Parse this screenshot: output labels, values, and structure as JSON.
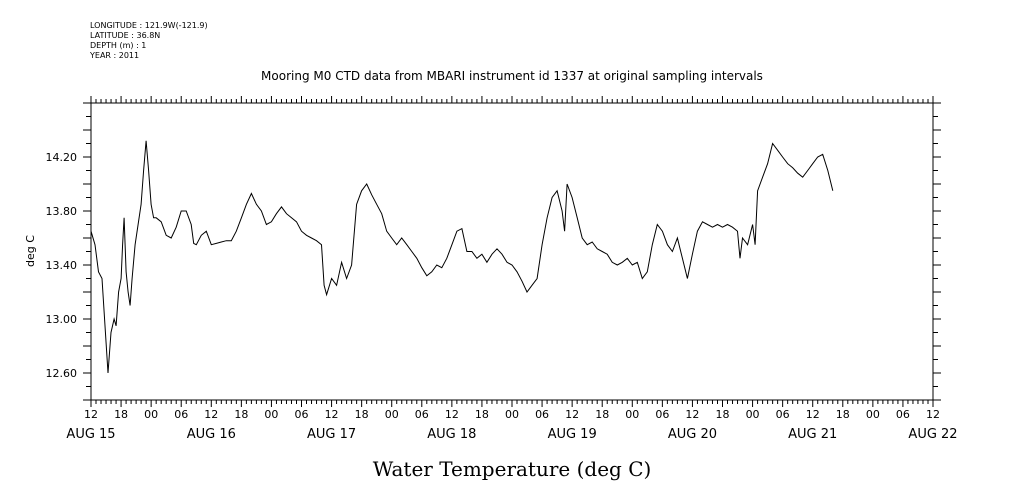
{
  "meta": {
    "longitude": "LONGITUDE : 121.9W(-121.9)",
    "latitude": "LATITUDE : 36.8N",
    "depth": "DEPTH (m) : 1",
    "year": "YEAR : 2011"
  },
  "chart_data": {
    "type": "line",
    "title": "Mooring M0 CTD data from MBARI instrument id 1337 at original sampling intervals",
    "ylabel": "deg C",
    "xlabel": "Water Temperature (deg C)",
    "ylim": [
      12.4,
      14.6
    ],
    "yticks": [
      "12.60",
      "13.00",
      "13.40",
      "13.80",
      "14.20"
    ],
    "ytick_values": [
      12.6,
      13.0,
      13.4,
      13.8,
      14.2
    ],
    "x_unit": "hours since 2011-08-15 12:00",
    "xlim": [
      0,
      168
    ],
    "xtick_hours": [
      "12",
      "18",
      "00",
      "06",
      "12",
      "18",
      "00",
      "06",
      "12",
      "18",
      "00",
      "06",
      "12",
      "18",
      "00",
      "06",
      "12",
      "18",
      "00",
      "06",
      "12",
      "18",
      "00",
      "06",
      "12",
      "18",
      "00",
      "06",
      "12"
    ],
    "date_labels": [
      {
        "label": "AUG 15",
        "hour": 0
      },
      {
        "label": "AUG 16",
        "hour": 24
      },
      {
        "label": "AUG 17",
        "hour": 48
      },
      {
        "label": "AUG 18",
        "hour": 72
      },
      {
        "label": "AUG 19",
        "hour": 96
      },
      {
        "label": "AUG 20",
        "hour": 120
      },
      {
        "label": "AUG 21",
        "hour": 144
      },
      {
        "label": "AUG 22",
        "hour": 168
      }
    ],
    "grid": false,
    "series": [
      {
        "points": [
          [
            0,
            13.65
          ],
          [
            0.8,
            13.55
          ],
          [
            1.5,
            13.35
          ],
          [
            2.2,
            13.3
          ],
          [
            2.8,
            12.95
          ],
          [
            3.4,
            12.6
          ],
          [
            4,
            12.9
          ],
          [
            4.6,
            13.0
          ],
          [
            5,
            12.95
          ],
          [
            5.5,
            13.2
          ],
          [
            6,
            13.3
          ],
          [
            6.3,
            13.55
          ],
          [
            6.6,
            13.75
          ],
          [
            7,
            13.35
          ],
          [
            7.4,
            13.2
          ],
          [
            7.8,
            13.1
          ],
          [
            8.2,
            13.3
          ],
          [
            8.8,
            13.55
          ],
          [
            9.4,
            13.7
          ],
          [
            10,
            13.85
          ],
          [
            10.5,
            14.1
          ],
          [
            11,
            14.32
          ],
          [
            11.5,
            14.1
          ],
          [
            12,
            13.85
          ],
          [
            12.5,
            13.75
          ],
          [
            13,
            13.75
          ],
          [
            14,
            13.72
          ],
          [
            15,
            13.62
          ],
          [
            16,
            13.6
          ],
          [
            17,
            13.68
          ],
          [
            18,
            13.8
          ],
          [
            19,
            13.8
          ],
          [
            20,
            13.7
          ],
          [
            20.5,
            13.56
          ],
          [
            21,
            13.55
          ],
          [
            22,
            13.62
          ],
          [
            23,
            13.65
          ],
          [
            24,
            13.55
          ],
          [
            25,
            13.56
          ],
          [
            26,
            13.57
          ],
          [
            27,
            13.58
          ],
          [
            28,
            13.58
          ],
          [
            29,
            13.65
          ],
          [
            30,
            13.75
          ],
          [
            31,
            13.85
          ],
          [
            32,
            13.93
          ],
          [
            33,
            13.85
          ],
          [
            34,
            13.8
          ],
          [
            35,
            13.7
          ],
          [
            36,
            13.72
          ],
          [
            37,
            13.78
          ],
          [
            38,
            13.83
          ],
          [
            39,
            13.78
          ],
          [
            40,
            13.75
          ],
          [
            41,
            13.72
          ],
          [
            42,
            13.65
          ],
          [
            43,
            13.62
          ],
          [
            44,
            13.6
          ],
          [
            45,
            13.58
          ],
          [
            46,
            13.55
          ],
          [
            46.5,
            13.25
          ],
          [
            47,
            13.18
          ],
          [
            48,
            13.3
          ],
          [
            49,
            13.25
          ],
          [
            50,
            13.42
          ],
          [
            51,
            13.3
          ],
          [
            52,
            13.4
          ],
          [
            53,
            13.85
          ],
          [
            54,
            13.95
          ],
          [
            55,
            14.0
          ],
          [
            56,
            13.92
          ],
          [
            57,
            13.85
          ],
          [
            58,
            13.78
          ],
          [
            59,
            13.65
          ],
          [
            60,
            13.6
          ],
          [
            61,
            13.55
          ],
          [
            62,
            13.6
          ],
          [
            63,
            13.55
          ],
          [
            64,
            13.5
          ],
          [
            65,
            13.45
          ],
          [
            66,
            13.38
          ],
          [
            67,
            13.32
          ],
          [
            68,
            13.35
          ],
          [
            69,
            13.4
          ],
          [
            70,
            13.38
          ],
          [
            71,
            13.45
          ],
          [
            72,
            13.55
          ],
          [
            73,
            13.65
          ],
          [
            74,
            13.67
          ],
          [
            75,
            13.5
          ],
          [
            76,
            13.5
          ],
          [
            77,
            13.45
          ],
          [
            78,
            13.48
          ],
          [
            79,
            13.42
          ],
          [
            80,
            13.48
          ],
          [
            81,
            13.52
          ],
          [
            82,
            13.48
          ],
          [
            83,
            13.42
          ],
          [
            84,
            13.4
          ],
          [
            85,
            13.35
          ],
          [
            86,
            13.28
          ],
          [
            87,
            13.2
          ],
          [
            88,
            13.25
          ],
          [
            89,
            13.3
          ],
          [
            90,
            13.55
          ],
          [
            91,
            13.75
          ],
          [
            92,
            13.9
          ],
          [
            93,
            13.95
          ],
          [
            94,
            13.8
          ],
          [
            94.5,
            13.65
          ],
          [
            95,
            14.0
          ],
          [
            96,
            13.9
          ],
          [
            97,
            13.75
          ],
          [
            98,
            13.6
          ],
          [
            99,
            13.55
          ],
          [
            100,
            13.57
          ],
          [
            101,
            13.52
          ],
          [
            102,
            13.5
          ],
          [
            103,
            13.48
          ],
          [
            104,
            13.42
          ],
          [
            105,
            13.4
          ],
          [
            106,
            13.42
          ],
          [
            107,
            13.45
          ],
          [
            108,
            13.4
          ],
          [
            109,
            13.42
          ],
          [
            110,
            13.3
          ],
          [
            111,
            13.35
          ],
          [
            112,
            13.55
          ],
          [
            113,
            13.7
          ],
          [
            114,
            13.65
          ],
          [
            115,
            13.55
          ],
          [
            116,
            13.5
          ],
          [
            117,
            13.6
          ],
          [
            118,
            13.45
          ],
          [
            119,
            13.3
          ],
          [
            120,
            13.48
          ],
          [
            121,
            13.65
          ],
          [
            122,
            13.72
          ],
          [
            123,
            13.7
          ],
          [
            124,
            13.68
          ],
          [
            125,
            13.7
          ],
          [
            126,
            13.68
          ],
          [
            127,
            13.7
          ],
          [
            128,
            13.68
          ],
          [
            129,
            13.65
          ],
          [
            129.5,
            13.45
          ],
          [
            130,
            13.6
          ],
          [
            131,
            13.55
          ],
          [
            132,
            13.7
          ],
          [
            132.5,
            13.55
          ],
          [
            133,
            13.95
          ],
          [
            134,
            14.05
          ],
          [
            135,
            14.15
          ],
          [
            136,
            14.3
          ],
          [
            137,
            14.25
          ],
          [
            138,
            14.2
          ],
          [
            139,
            14.15
          ],
          [
            140,
            14.12
          ],
          [
            141,
            14.08
          ],
          [
            142,
            14.05
          ],
          [
            143,
            14.1
          ],
          [
            144,
            14.15
          ],
          [
            145,
            14.2
          ],
          [
            146,
            14.22
          ],
          [
            147,
            14.1
          ],
          [
            148,
            13.95
          ]
        ]
      }
    ]
  }
}
